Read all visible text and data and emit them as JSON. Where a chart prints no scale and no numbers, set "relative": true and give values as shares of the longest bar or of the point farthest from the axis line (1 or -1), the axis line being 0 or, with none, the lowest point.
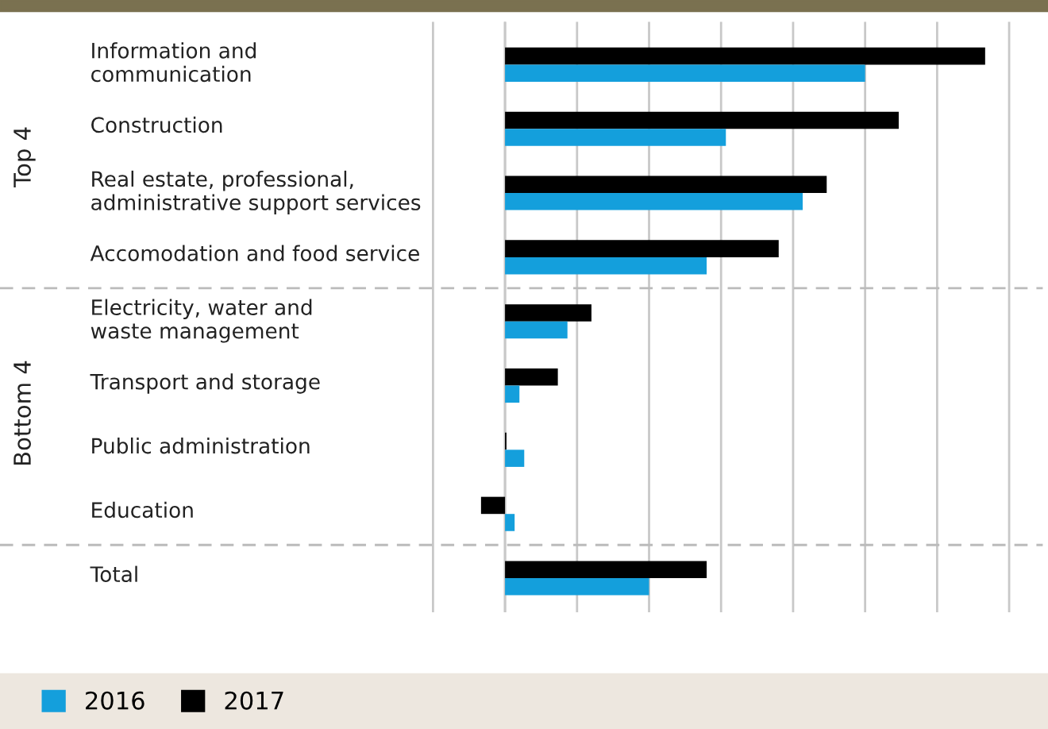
{
  "chart_data": {
    "type": "bar",
    "orientation": "horizontal",
    "relative": true,
    "grid": "x",
    "legend": "bottom left",
    "categories": [
      "Information and\ncommunication",
      "Construction",
      "Real estate, professional,\nadministrative support services",
      "Accomodation and food service",
      "Electricity, water and\nwaste management",
      "Transport and storage",
      "Public administration",
      "Education",
      "Total"
    ],
    "annotations": [
      "Top 4",
      "Bottom 4"
    ],
    "series": [
      {
        "name": "2017",
        "color": "#000000",
        "values": [
          1,
          0.82,
          0.67,
          0.57,
          0.18,
          0.11,
          0.003,
          -0.05,
          0.42
        ]
      },
      {
        "name": "2016",
        "color": "#149fdc",
        "values": [
          0.75,
          0.46,
          0.62,
          0.42,
          0.13,
          0.03,
          0.04,
          0.02,
          0.3
        ]
      }
    ]
  }
}
